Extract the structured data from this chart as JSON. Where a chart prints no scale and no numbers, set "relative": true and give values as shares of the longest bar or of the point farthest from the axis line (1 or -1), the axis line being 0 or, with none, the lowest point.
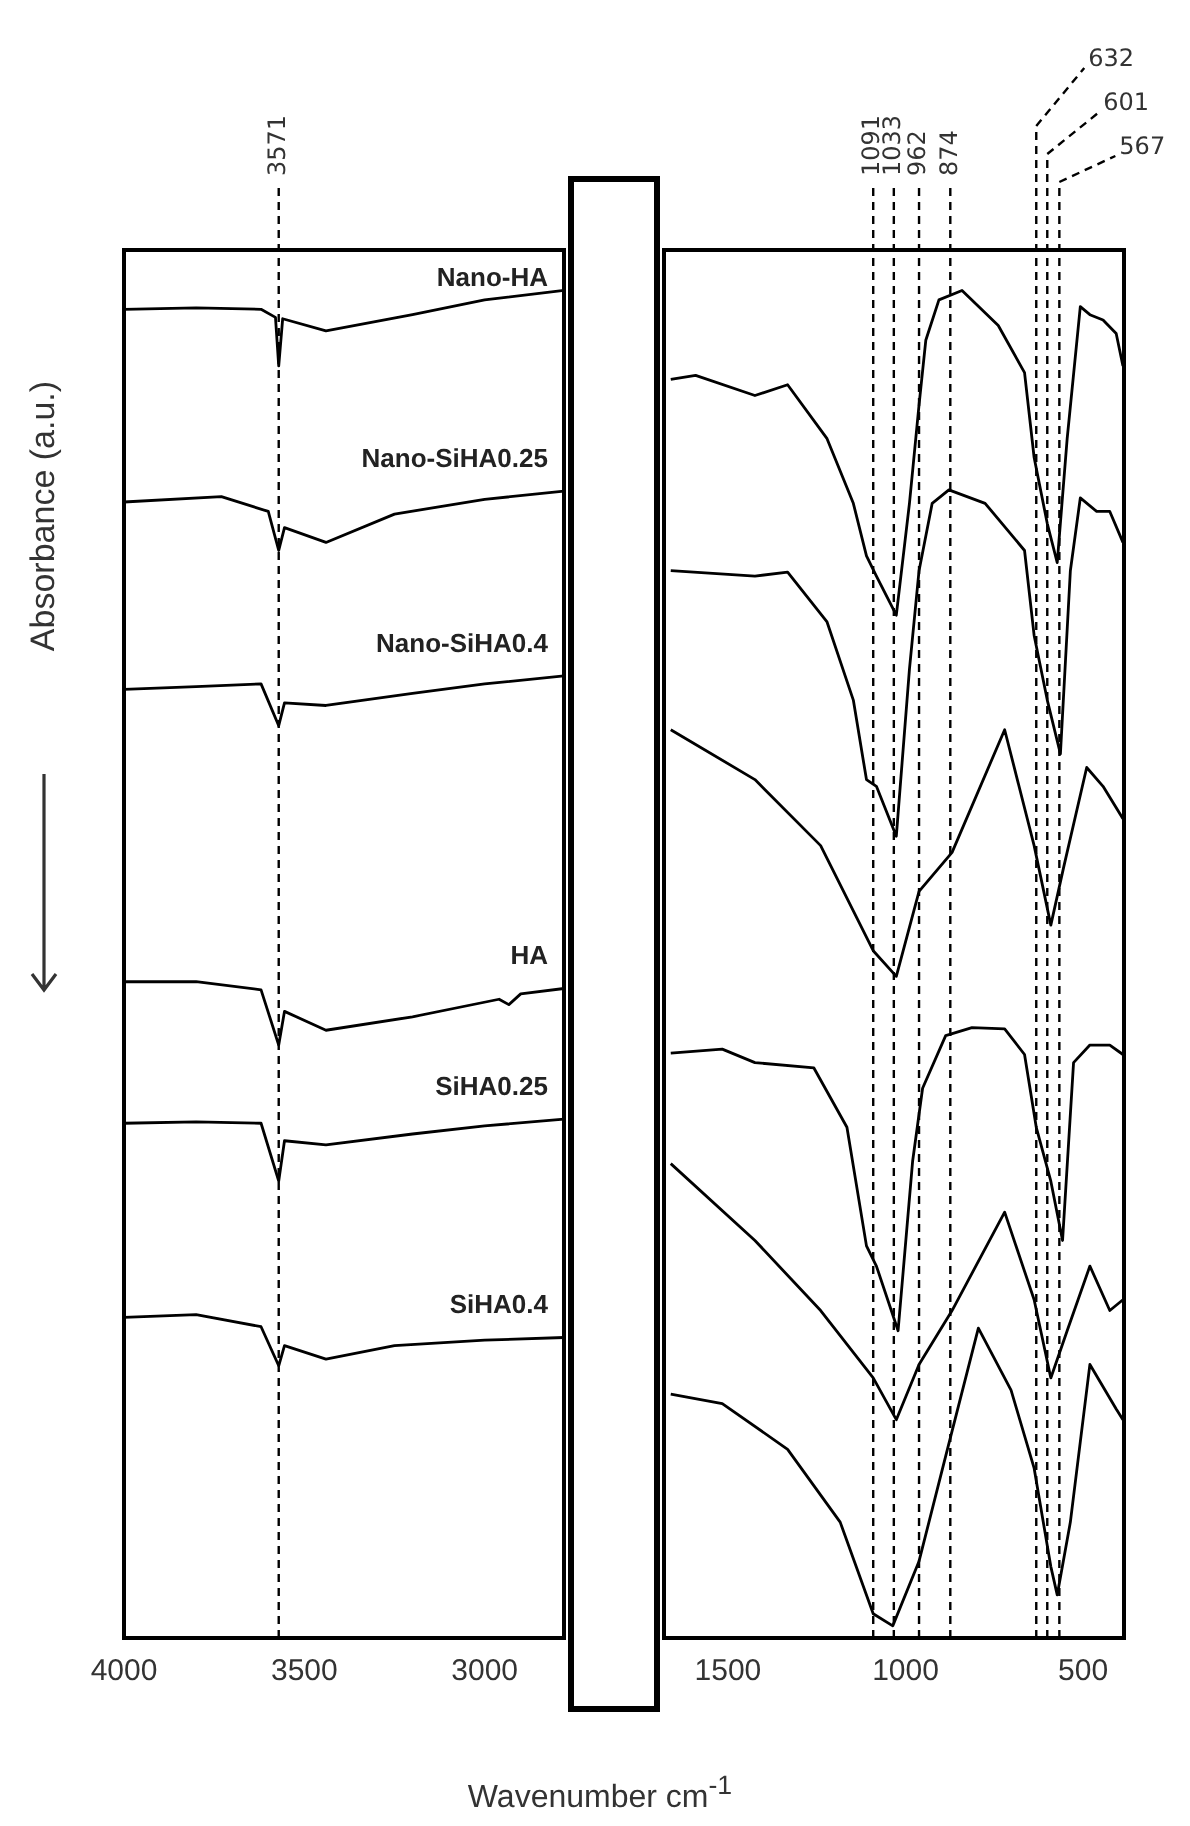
{
  "chart_data": [
    {
      "type": "line",
      "xlabel": "Wavenumber cm$^{-1}$",
      "ylabel": "Absorbance (a.u.)",
      "relative": true,
      "xlim": [
        4000,
        2780
      ],
      "xticks": [
        4000,
        3500,
        3000
      ],
      "ref_lines": [
        {
          "axis": "x",
          "value": 3571,
          "label": "3571",
          "line_style": "dashed"
        }
      ],
      "series": [
        {
          "name": "Nano-HA",
          "color": "#000000",
          "x": [
            4000,
            3800,
            3620,
            3580,
            3571,
            3560,
            3440,
            3200,
            3000,
            2780
          ],
          "values": [
            0.986,
            0.987,
            0.986,
            0.98,
            0.944,
            0.979,
            0.97,
            0.982,
            0.993,
            1
          ]
        },
        {
          "name": "Nano-SiHA0.25",
          "color": "#000000",
          "x": [
            4000,
            3730,
            3600,
            3571,
            3555,
            3440,
            3250,
            3000,
            2780
          ],
          "values": [
            0.843,
            0.847,
            0.836,
            0.807,
            0.824,
            0.813,
            0.834,
            0.845,
            0.851
          ]
        },
        {
          "name": "Nano-SiHA0.4",
          "color": "#000000",
          "x": [
            4000,
            3800,
            3620,
            3571,
            3555,
            3440,
            3200,
            3000,
            2780
          ],
          "values": [
            0.704,
            0.706,
            0.708,
            0.677,
            0.694,
            0.692,
            0.701,
            0.708,
            0.714
          ]
        },
        {
          "name": "HA",
          "color": "#000000",
          "x": [
            4000,
            3800,
            3620,
            3571,
            3555,
            3440,
            3200,
            2960,
            2933,
            2900,
            2780
          ],
          "values": [
            0.487,
            0.487,
            0.481,
            0.44,
            0.465,
            0.451,
            0.461,
            0.474,
            0.47,
            0.478,
            0.482
          ]
        },
        {
          "name": "SiHA0.25",
          "color": "#000000",
          "x": [
            4000,
            3800,
            3620,
            3571,
            3555,
            3440,
            3200,
            3000,
            2780
          ],
          "values": [
            0.382,
            0.383,
            0.382,
            0.339,
            0.369,
            0.366,
            0.374,
            0.38,
            0.385
          ]
        },
        {
          "name": "SiHA0.4",
          "color": "#000000",
          "x": [
            4000,
            3800,
            3620,
            3571,
            3555,
            3440,
            3250,
            3000,
            2780
          ],
          "values": [
            0.238,
            0.24,
            0.231,
            0.202,
            0.217,
            0.207,
            0.217,
            0.221,
            0.223
          ]
        }
      ]
    },
    {
      "type": "line",
      "relative": true,
      "xlim": [
        1680,
        385
      ],
      "xticks": [
        1500,
        1000,
        500
      ],
      "ref_lines": [
        {
          "axis": "x",
          "value": 1091,
          "label": "1091",
          "line_style": "dashed"
        },
        {
          "axis": "x",
          "value": 1033,
          "label": "1033",
          "line_style": "dashed"
        },
        {
          "axis": "x",
          "value": 962,
          "label": "962",
          "line_style": "dashed"
        },
        {
          "axis": "x",
          "value": 874,
          "label": "874",
          "line_style": "dashed"
        },
        {
          "axis": "x",
          "value": 632,
          "label": "632",
          "line_style": "dashed"
        },
        {
          "axis": "x",
          "value": 601,
          "label": "601",
          "line_style": "dashed"
        },
        {
          "axis": "x",
          "value": 567,
          "label": "567",
          "line_style": "dashed"
        }
      ],
      "series": [
        {
          "color": "#000000",
          "x": [
            1661,
            1591,
            1424,
            1332,
            1221,
            1147,
            1110,
            1082,
            1026,
            989,
            962,
            943,
            906,
            841,
            739,
            665,
            638,
            601,
            573,
            545,
            508,
            481,
            444,
            407,
            388
          ],
          "values": [
            0.934,
            0.937,
            0.922,
            0.93,
            0.89,
            0.842,
            0.803,
            0.788,
            0.759,
            0.842,
            0.915,
            0.963,
            0.993,
            1,
            0.974,
            0.939,
            0.876,
            0.827,
            0.798,
            0.89,
            0.988,
            0.982,
            0.978,
            0.968,
            0.944
          ]
        },
        {
          "color": "#000000",
          "x": [
            1661,
            1424,
            1332,
            1221,
            1147,
            1110,
            1082,
            1026,
            989,
            962,
            925,
            878,
            776,
            665,
            638,
            601,
            564,
            536,
            508,
            462,
            425,
            388
          ],
          "values": [
            0.792,
            0.788,
            0.791,
            0.754,
            0.696,
            0.637,
            0.632,
            0.595,
            0.719,
            0.792,
            0.842,
            0.852,
            0.842,
            0.807,
            0.744,
            0.696,
            0.656,
            0.792,
            0.846,
            0.836,
            0.836,
            0.813
          ]
        },
        {
          "color": "#000000",
          "x": [
            1661,
            1424,
            1239,
            1091,
            1026,
            962,
            869,
            721,
            638,
            591,
            554,
            490,
            444,
            388
          ],
          "values": [
            0.674,
            0.637,
            0.588,
            0.51,
            0.491,
            0.554,
            0.583,
            0.674,
            0.588,
            0.529,
            0.573,
            0.646,
            0.632,
            0.608
          ]
        },
        {
          "color": "#000000",
          "x": [
            1661,
            1516,
            1424,
            1258,
            1165,
            1110,
            1082,
            1021,
            980,
            952,
            887,
            813,
            721,
            665,
            632,
            591,
            558,
            527,
            481,
            425,
            388
          ],
          "values": [
            0.434,
            0.437,
            0.427,
            0.423,
            0.379,
            0.291,
            0.276,
            0.228,
            0.354,
            0.408,
            0.447,
            0.453,
            0.452,
            0.433,
            0.379,
            0.339,
            0.295,
            0.427,
            0.44,
            0.44,
            0.433
          ]
        },
        {
          "color": "#000000",
          "x": [
            1661,
            1424,
            1239,
            1091,
            1026,
            962,
            869,
            721,
            638,
            591,
            545,
            481,
            425,
            388
          ],
          "values": [
            0.352,
            0.295,
            0.243,
            0.193,
            0.162,
            0.203,
            0.243,
            0.316,
            0.251,
            0.193,
            0.228,
            0.276,
            0.243,
            0.251
          ]
        },
        {
          "color": "#000000",
          "x": [
            1661,
            1516,
            1332,
            1184,
            1091,
            1036,
            962,
            887,
            795,
            703,
            638,
            591,
            573,
            536,
            481,
            407,
            388
          ],
          "values": [
            0.181,
            0.174,
            0.14,
            0.086,
            0.018,
            0.009,
            0.057,
            0.135,
            0.23,
            0.184,
            0.126,
            0.053,
            0.032,
            0.086,
            0.203,
            0.17,
            0.162
          ]
        }
      ]
    }
  ]
}
